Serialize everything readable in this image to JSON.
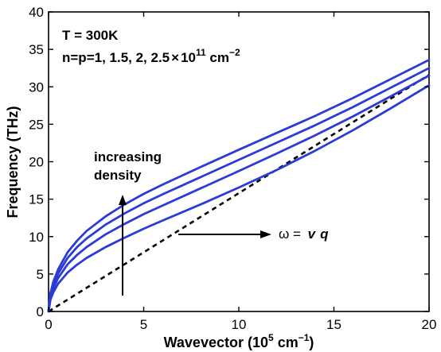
{
  "chart_data": {
    "type": "line",
    "xlabel": "Wavevector (10",
    "xlabel_sup": "5",
    "xlabel_unit": " cm",
    "xlabel_unit_sup": "−1",
    "xlabel_close": ")",
    "ylabel": "Frequency (THz)",
    "xlim": [
      0,
      20
    ],
    "ylim": [
      0,
      40
    ],
    "xticks": [
      0,
      5,
      10,
      15,
      20
    ],
    "yticks": [
      0,
      5,
      10,
      15,
      20,
      25,
      30,
      35,
      40
    ],
    "grid": false,
    "annotations": {
      "temperature": "T = 300K",
      "densities_prefix": "n=p=1, 1.5, 2, 2.5",
      "densities_times": "×",
      "densities_base": "10",
      "densities_exp": "11",
      "densities_unit": " cm",
      "densities_unit_exp": "−2",
      "increasing_line1": "increasing",
      "increasing_line2": "density",
      "omega_lhs": "ω = ",
      "omega_v": "v",
      "omega_q": "q"
    },
    "line_color": "#2b3bd6",
    "dash_color": "#000000",
    "series": [
      {
        "x": [
          0,
          0.1,
          0.25,
          0.5,
          1,
          1.5,
          2,
          3,
          4,
          5,
          6,
          8,
          10,
          12,
          14,
          16,
          18,
          20
        ],
        "y": [
          0,
          1.6,
          2.55,
          3.7,
          5.2,
          6.25,
          7.15,
          8.6,
          9.85,
          11.05,
          12.15,
          14.3,
          16.55,
          18.9,
          21.45,
          24.2,
          27.15,
          30.2
        ]
      },
      {
        "x": [
          0,
          0.1,
          0.25,
          0.5,
          1,
          1.5,
          2,
          3,
          4,
          5,
          6,
          8,
          10,
          12,
          14,
          16,
          18,
          20
        ],
        "y": [
          0,
          1.95,
          3.1,
          4.45,
          6.3,
          7.55,
          8.6,
          10.3,
          11.7,
          13.0,
          14.15,
          16.45,
          18.75,
          21.1,
          23.5,
          26.05,
          28.75,
          31.5
        ]
      },
      {
        "x": [
          0,
          0.1,
          0.25,
          0.5,
          1,
          1.5,
          2,
          3,
          4,
          5,
          6,
          8,
          10,
          12,
          14,
          16,
          18,
          20
        ],
        "y": [
          0,
          2.2,
          3.55,
          5.05,
          7.15,
          8.6,
          9.75,
          11.6,
          13.1,
          14.45,
          15.65,
          17.95,
          20.25,
          22.55,
          24.85,
          27.3,
          29.9,
          32.5
        ]
      },
      {
        "x": [
          0,
          0.1,
          0.25,
          0.5,
          1,
          1.5,
          2,
          3,
          4,
          5,
          6,
          8,
          10,
          12,
          14,
          16,
          18,
          20
        ],
        "y": [
          0,
          2.45,
          3.95,
          5.6,
          7.9,
          9.45,
          10.75,
          12.7,
          14.3,
          15.7,
          16.95,
          19.3,
          21.6,
          23.85,
          26.1,
          28.5,
          31.05,
          33.6
        ]
      }
    ],
    "reference": {
      "x": [
        0,
        20
      ],
      "y": [
        0,
        31.6
      ]
    }
  }
}
